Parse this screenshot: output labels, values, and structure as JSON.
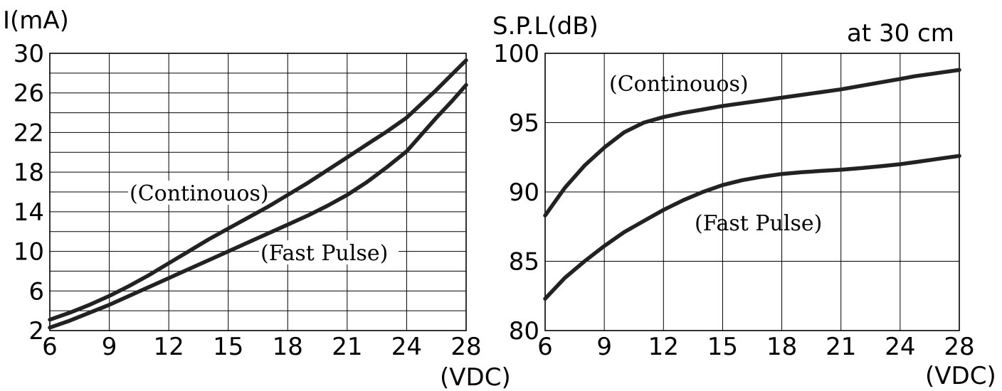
{
  "chart_data": [
    {
      "type": "line",
      "ylabel": "I(mA)",
      "xlabel": "(VDC)",
      "x_ticks": [
        "6",
        "9",
        "12",
        "15",
        "18",
        "21",
        "24",
        "28"
      ],
      "y_ticks": [
        "2",
        "6",
        "10",
        "14",
        "18",
        "22",
        "26",
        "30"
      ],
      "ylim": [
        2,
        30
      ],
      "grid": true,
      "annotations": [
        "(Continouos)",
        "(Fast Pulse)"
      ],
      "series": [
        {
          "name": "(Continouos)",
          "x": [
            6,
            7,
            8,
            9,
            10,
            11,
            12,
            13,
            14,
            15,
            16,
            17,
            18,
            19,
            20,
            21,
            22,
            23,
            24,
            25,
            26,
            27,
            28
          ],
          "values": [
            3.1,
            3.8,
            4.6,
            5.5,
            6.5,
            7.6,
            8.8,
            10.0,
            11.2,
            12.3,
            13.4,
            14.5,
            15.7,
            16.9,
            18.2,
            19.5,
            20.8,
            22.1,
            23.5,
            24.9,
            26.3,
            27.8,
            29.3
          ]
        },
        {
          "name": "(Fast Pulse)",
          "x": [
            6,
            7,
            8,
            9,
            10,
            11,
            12,
            13,
            14,
            15,
            16,
            17,
            18,
            19,
            20,
            21,
            22,
            23,
            24,
            25,
            26,
            27,
            28
          ],
          "values": [
            2.3,
            3.0,
            3.8,
            4.6,
            5.5,
            6.4,
            7.3,
            8.2,
            9.1,
            10.0,
            10.9,
            11.8,
            12.7,
            13.6,
            14.6,
            15.7,
            17.0,
            18.5,
            20.1,
            21.8,
            23.5,
            25.1,
            26.8
          ]
        }
      ]
    },
    {
      "type": "line",
      "ylabel": "S.P.L(dB)",
      "xlabel": "(VDC)",
      "annotation_top": "at 30 cm",
      "x_ticks": [
        "6",
        "9",
        "12",
        "15",
        "18",
        "21",
        "24",
        "28"
      ],
      "y_ticks": [
        "80",
        "85",
        "90",
        "95",
        "100"
      ],
      "ylim": [
        80,
        100
      ],
      "grid": true,
      "annotations": [
        "(Continouos)",
        "(Fast Pulse)"
      ],
      "series": [
        {
          "name": "(Continouos)",
          "x": [
            6,
            7,
            8,
            9,
            10,
            11,
            12,
            13,
            14,
            15,
            16,
            17,
            18,
            19,
            20,
            21,
            22,
            23,
            24,
            25,
            26,
            27,
            28
          ],
          "values": [
            88.3,
            90.3,
            91.9,
            93.2,
            94.3,
            95.0,
            95.4,
            95.7,
            95.95,
            96.2,
            96.4,
            96.6,
            96.8,
            97.0,
            97.2,
            97.4,
            97.65,
            97.9,
            98.15,
            98.35,
            98.5,
            98.65,
            98.8
          ]
        },
        {
          "name": "(Fast Pulse)",
          "x": [
            6,
            7,
            8,
            9,
            10,
            11,
            12,
            13,
            14,
            15,
            16,
            17,
            18,
            19,
            20,
            21,
            22,
            23,
            24,
            25,
            26,
            27,
            28
          ],
          "values": [
            82.3,
            83.8,
            85.0,
            86.1,
            87.1,
            87.9,
            88.7,
            89.4,
            90.0,
            90.5,
            90.85,
            91.1,
            91.3,
            91.42,
            91.52,
            91.6,
            91.72,
            91.85,
            92.0,
            92.15,
            92.3,
            92.45,
            92.6
          ]
        }
      ]
    }
  ]
}
